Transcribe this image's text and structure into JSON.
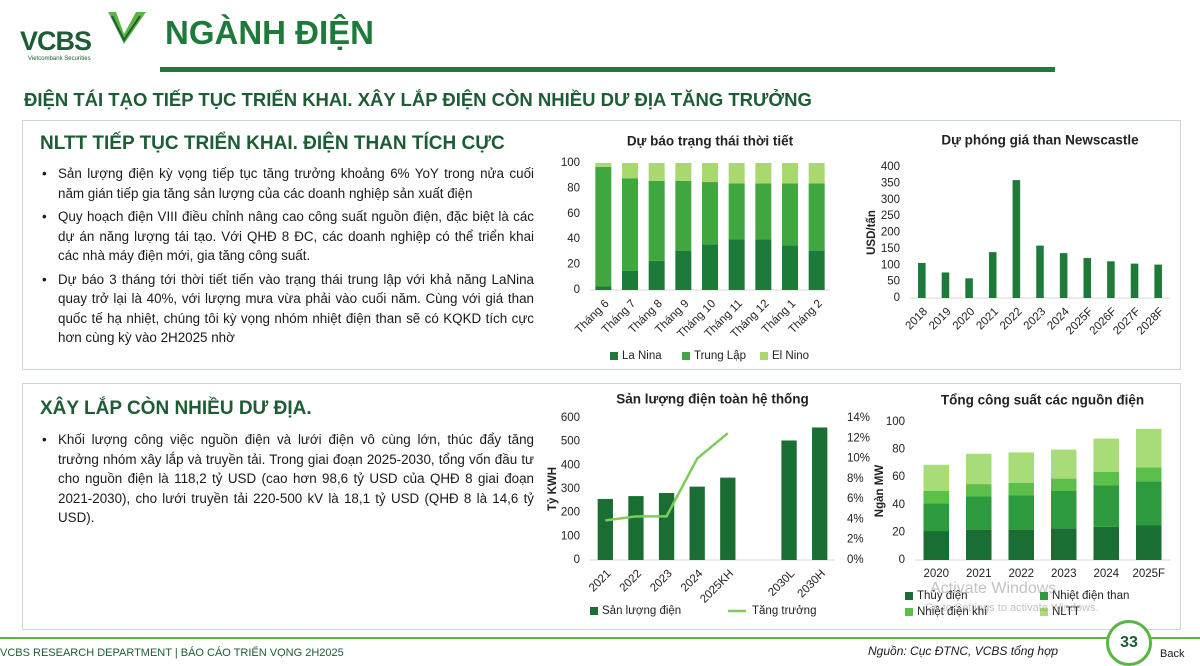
{
  "header": {
    "logo": "VCBS",
    "logo_sub": "Vietcombank Securities",
    "title": "NGÀNH ĐIỆN"
  },
  "headline": "ĐIỆN TÁI TẠO TIẾP TỤC TRIỂN KHAI. XÂY LẮP ĐIỆN CÒN NHIỀU DƯ ĐỊA TĂNG TRƯỞNG",
  "sections": [
    {
      "title": "NLTT TIẾP TỤC TRIỂN KHAI. ĐIỆN THAN TÍCH CỰC",
      "bullets": [
        "Sản lượng điện kỳ vọng tiếp tục tăng trưởng khoảng 6% YoY trong nửa cuối năm gián tiếp gia tăng sản lượng của các doanh nghiệp sản xuất điện",
        "Quy hoạch điện VIII điều chỉnh nâng cao công suất nguồn điện, đặc biệt là các dự án năng lượng tái tạo. Với QHĐ 8 ĐC, các doanh nghiệp có thể triển khai các nhà máy điện mới, gia tăng công suất.",
        "Dự báo 3 tháng tới thời tiết tiến vào trạng thái trung lập với khả năng LaNina quay trở lại là 40%, với lượng mưa vừa phải vào cuối năm. Cùng với giá than quốc tế hạ nhiệt, chúng tôi kỳ vọng nhóm nhiệt điện than sẽ có KQKD tích cực hơn cùng kỳ vào 2H2025 nhờ"
      ]
    },
    {
      "title": "XÂY LẮP CÒN NHIỀU DƯ ĐỊA.",
      "bullets": [
        "Khối lượng công việc nguồn điện và lưới điện vô cùng lớn, thúc đẩy tăng trưởng nhóm xây lắp và truyền tải. Trong giai đoạn 2025-2030, tổng vốn đầu tư cho nguồn điện là 118,2 tỷ USD (cao hơn 98,6 tỷ USD của QHĐ 8 giai đoạn 2021-2030), cho lưới truyền tải 220-500 kV là 18,1 tỷ USD (QHĐ 8 là 14,6 tỷ USD)."
      ]
    }
  ],
  "charts": [
    {
      "type": "stacked_bar",
      "title": "Dự báo trạng thái thời tiết",
      "categories": [
        "Tháng 6",
        "Tháng 7",
        "Tháng 8",
        "Tháng 9",
        "Tháng 10",
        "Tháng 11",
        "Tháng 12",
        "Tháng 1",
        "Tháng 2"
      ],
      "series": [
        {
          "name": "La Nina",
          "color": "#1e7a38",
          "values": [
            3,
            15,
            23,
            31,
            36,
            40,
            40,
            35,
            31
          ]
        },
        {
          "name": "Trung Lập",
          "color": "#3fa640",
          "values": [
            94,
            73,
            63,
            55,
            49,
            44,
            44,
            49,
            53
          ]
        },
        {
          "name": "El Nino",
          "color": "#a9d86e",
          "values": [
            3,
            12,
            14,
            14,
            15,
            16,
            16,
            16,
            16
          ]
        }
      ],
      "ylim": [
        0,
        100
      ],
      "yticks": [
        0,
        20,
        40,
        60,
        80,
        100
      ]
    },
    {
      "type": "bar",
      "title": "Dự phóng giá than Newscastle",
      "y_label": "USD/tấn",
      "categories": [
        "2018",
        "2019",
        "2020",
        "2021",
        "2022",
        "2023",
        "2024",
        "2025F",
        "2026F",
        "2027F",
        "2028F"
      ],
      "values": [
        107,
        78,
        60,
        140,
        360,
        160,
        137,
        122,
        112,
        105,
        102
      ],
      "color": "#1e7a38",
      "ylim": [
        0,
        400
      ],
      "yticks": [
        0,
        50,
        100,
        150,
        200,
        250,
        300,
        350,
        400
      ]
    },
    {
      "type": "combo",
      "title": "Sản lượng điện toàn hệ thống",
      "y_label": "Tỷ KWH",
      "categories": [
        "2021",
        "2022",
        "2023",
        "2024",
        "2025KH",
        null,
        "2030L",
        "2030H"
      ],
      "series": [
        {
          "name": "Sản lượng điện",
          "color": "#1a6e34",
          "axis": "y",
          "values": [
            258,
            270,
            283,
            310,
            348,
            null,
            505,
            560
          ]
        },
        {
          "name": "Tăng trưởng",
          "color": "#7dcc5a",
          "axis": "y2",
          "values": [
            3.9,
            4.3,
            4.3,
            10,
            12.5,
            null,
            null,
            null
          ]
        }
      ],
      "ylim": [
        0,
        600
      ],
      "yticks": [
        0,
        100,
        200,
        300,
        400,
        500,
        600
      ],
      "y2lim": [
        0,
        14
      ],
      "y2ticks": [
        {
          "value": 0,
          "label": "0%"
        },
        {
          "value": 2,
          "label": "2%"
        },
        {
          "value": 4,
          "label": "4%"
        },
        {
          "value": 6,
          "label": "6%"
        },
        {
          "value": 8,
          "label": "8%"
        },
        {
          "value": 10,
          "label": "10%"
        },
        {
          "value": 12,
          "label": "12%"
        },
        {
          "value": 14,
          "label": "14%"
        }
      ]
    },
    {
      "type": "stacked_bar",
      "title": "Tổng công suất các nguồn điện",
      "y_label": "Ngàn MW",
      "categories": [
        "2020",
        "2021",
        "2022",
        "2023",
        "2024",
        "2025F"
      ],
      "series": [
        {
          "name": "Thủy điện",
          "color": "#1a6e34",
          "values": [
            21,
            22,
            22,
            23,
            24,
            25
          ]
        },
        {
          "name": "Nhiệt điện than",
          "color": "#2e9a3e",
          "values": [
            20,
            24,
            25,
            27,
            30,
            32
          ]
        },
        {
          "name": "Nhiệt điện khí",
          "color": "#5cbf4a",
          "values": [
            9,
            9,
            9,
            9,
            10,
            10
          ]
        },
        {
          "name": "NLTT",
          "color": "#a8dc78",
          "values": [
            19,
            22,
            22,
            21,
            24,
            28
          ]
        }
      ],
      "ylim": [
        0,
        100
      ],
      "yticks": [
        0,
        20,
        40,
        60,
        80,
        100
      ]
    }
  ],
  "watermark": {
    "line1": "Activate Windows",
    "line2": "Go to Settings to activate Windows."
  },
  "footer": {
    "left": "VCBS RESEARCH DEPARTMENT | BÁO CÁO TRIỂN VỌNG 2H2025",
    "source": "Nguồn: Cục ĐTNC, VCBS tổng hợp",
    "page": "33",
    "back": "Back"
  }
}
